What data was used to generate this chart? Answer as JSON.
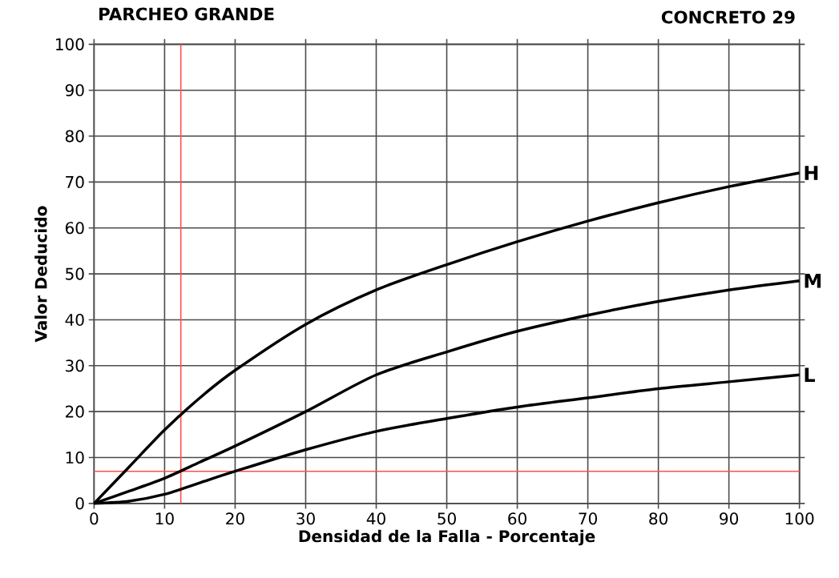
{
  "chart_data": {
    "type": "line",
    "title": "PARCHEO GRANDE",
    "subtitle": "CONCRETO 29",
    "xlabel": "Densidad de la Falla - Porcentaje",
    "ylabel": "Valor Deducido",
    "x": [
      0,
      5,
      10,
      15,
      20,
      30,
      40,
      50,
      60,
      70,
      80,
      90,
      100
    ],
    "series": [
      {
        "name": "H",
        "color": "#000000",
        "values": [
          0,
          8,
          16,
          23,
          29,
          39,
          46.5,
          52,
          57,
          61.5,
          65.5,
          69,
          72
        ]
      },
      {
        "name": "M",
        "color": "#000000",
        "values": [
          0,
          2.7,
          5.5,
          9,
          12.5,
          20,
          28,
          33,
          37.5,
          41,
          44,
          46.5,
          48.5
        ]
      },
      {
        "name": "L",
        "color": "#000000",
        "values": [
          0,
          0.5,
          2,
          4.5,
          7,
          11.7,
          15.7,
          18.5,
          21,
          23,
          25,
          26.5,
          28
        ]
      }
    ],
    "xlim": [
      0,
      100
    ],
    "ylim": [
      0,
      100
    ],
    "xticks": [
      0,
      10,
      20,
      30,
      40,
      50,
      60,
      70,
      80,
      90,
      100
    ],
    "yticks": [
      0,
      10,
      20,
      30,
      40,
      50,
      60,
      70,
      80,
      90,
      100
    ],
    "grid": true,
    "marker": "none",
    "line_style": "solid",
    "ref_lines": [
      {
        "axis": "y",
        "value": 7,
        "color": "#ff5050"
      },
      {
        "axis": "x",
        "value": 12.3,
        "color": "#ff5050"
      }
    ]
  }
}
